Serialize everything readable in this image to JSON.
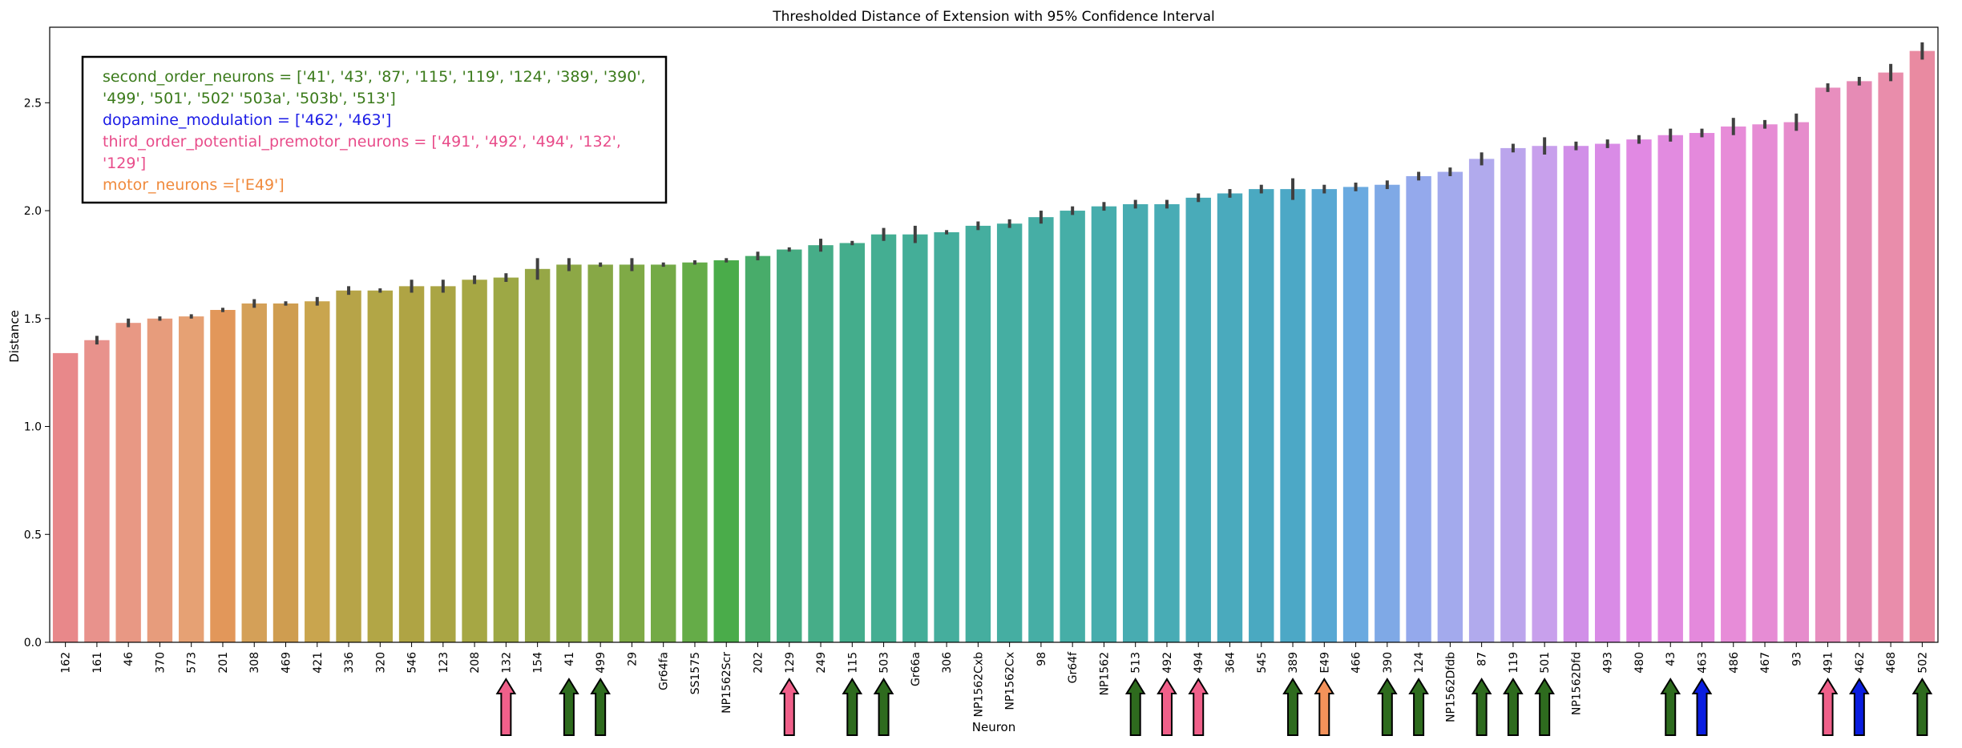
{
  "chart_data": {
    "type": "bar",
    "title": "Thresholded Distance of Extension with 95% Confidence Interval",
    "xlabel": "Neuron",
    "ylabel": "Distance",
    "ylim": [
      0,
      2.85
    ],
    "yticks": [
      "0.0",
      "0.5",
      "1.0",
      "1.5",
      "2.0",
      "2.5"
    ],
    "grid": false,
    "categories": [
      "162",
      "161",
      "46",
      "370",
      "573",
      "201",
      "308",
      "469",
      "421",
      "336",
      "320",
      "546",
      "123",
      "208",
      "132",
      "154",
      "41",
      "499",
      "29",
      "Gr64fa",
      "SS1575",
      "NP1562Scr",
      "202",
      "129",
      "249",
      "115",
      "503",
      "Gr66a",
      "306",
      "NP1562Cxb",
      "NP1562Cx",
      "98",
      "Gr64f",
      "NP1562",
      "513",
      "492",
      "494",
      "364",
      "545",
      "389",
      "E49",
      "466",
      "390",
      "124",
      "NP1562Dfdb",
      "87",
      "119",
      "501",
      "NP1562Dfd",
      "493",
      "480",
      "43",
      "463",
      "486",
      "467",
      "93",
      "491",
      "462",
      "468",
      "502"
    ],
    "values": [
      1.34,
      1.4,
      1.48,
      1.5,
      1.51,
      1.54,
      1.57,
      1.57,
      1.58,
      1.63,
      1.63,
      1.65,
      1.65,
      1.68,
      1.69,
      1.73,
      1.75,
      1.75,
      1.75,
      1.75,
      1.76,
      1.77,
      1.79,
      1.82,
      1.84,
      1.85,
      1.89,
      1.89,
      1.9,
      1.93,
      1.94,
      1.97,
      2.0,
      2.02,
      2.03,
      2.03,
      2.06,
      2.08,
      2.1,
      2.1,
      2.1,
      2.11,
      2.12,
      2.16,
      2.18,
      2.24,
      2.29,
      2.3,
      2.3,
      2.31,
      2.33,
      2.35,
      2.36,
      2.39,
      2.4,
      2.41,
      2.57,
      2.6,
      2.64,
      2.74
    ],
    "errors": [
      0,
      0.02,
      0.02,
      0.01,
      0.01,
      0.01,
      0.02,
      0.01,
      0.02,
      0.02,
      0.01,
      0.03,
      0.03,
      0.02,
      0.02,
      0.05,
      0.03,
      0.01,
      0.03,
      0.01,
      0.01,
      0.01,
      0.02,
      0.01,
      0.03,
      0.01,
      0.03,
      0.04,
      0.01,
      0.02,
      0.02,
      0.03,
      0.02,
      0.02,
      0.02,
      0.02,
      0.02,
      0.02,
      0.02,
      0.05,
      0.02,
      0.02,
      0.02,
      0.02,
      0.02,
      0.03,
      0.02,
      0.04,
      0.02,
      0.02,
      0.02,
      0.03,
      0.02,
      0.04,
      0.02,
      0.04,
      0.02,
      0.02,
      0.04,
      0.04
    ],
    "colors": [
      "#e8888a",
      "#e8928c",
      "#e89884",
      "#e79c7c",
      "#e6a174",
      "#e2975a",
      "#d4a058",
      "#cf9d50",
      "#c9a54e",
      "#b7a448",
      "#b2a646",
      "#afa444",
      "#aaa544",
      "#a6a744",
      "#9da845",
      "#96a746",
      "#8da846",
      "#87a846",
      "#7faa46",
      "#74aa47",
      "#65ac48",
      "#4aac4a",
      "#48ac6a",
      "#46ac82",
      "#46ad88",
      "#44ad8c",
      "#44ae92",
      "#44ae98",
      "#45ae9d",
      "#45ae9f",
      "#45aea2",
      "#46aea5",
      "#46aea7",
      "#47adad",
      "#48acb1",
      "#48acb5",
      "#49abb9",
      "#4aaabd",
      "#4aa9c1",
      "#4ca8c6",
      "#58a8d3",
      "#6aaae0",
      "#7fa9e6",
      "#94a9ec",
      "#a3aaed",
      "#b1aaed",
      "#bba5ec",
      "#c8a0ec",
      "#d18fe8",
      "#d98be6",
      "#e189e3",
      "#e28be0",
      "#e489dc",
      "#e78cd8",
      "#e68cd4",
      "#e68ccc",
      "#e88ebe",
      "#e68bb5",
      "#e98dab",
      "#e98aa1"
    ],
    "legend": {
      "lines": [
        {
          "text": "second_order_neurons = ['41', '43', '87', '115', '119', '124', '389', '390',",
          "color": "#3a7a1a"
        },
        {
          "text": "'499', '501', '502' '503a', '503b', '513']",
          "color": "#3a7a1a"
        },
        {
          "text": "dopamine_modulation = ['462', '463']",
          "color": "#1a1ae6"
        },
        {
          "text": "third_order_potential_premotor_neurons = ['491', '492', '494', '132',",
          "color": "#e84c8a"
        },
        {
          "text": "'129']",
          "color": "#e84c8a"
        },
        {
          "text": "motor_neurons =['E49']",
          "color": "#f08a3c"
        }
      ],
      "placement": "upper-left"
    },
    "arrows": [
      {
        "category": "132",
        "group": "third_order"
      },
      {
        "category": "41",
        "group": "second_order"
      },
      {
        "category": "499",
        "group": "second_order"
      },
      {
        "category": "129",
        "group": "third_order"
      },
      {
        "category": "115",
        "group": "second_order"
      },
      {
        "category": "503",
        "group": "second_order"
      },
      {
        "category": "513",
        "group": "second_order"
      },
      {
        "category": "492",
        "group": "third_order"
      },
      {
        "category": "494",
        "group": "third_order"
      },
      {
        "category": "389",
        "group": "second_order"
      },
      {
        "category": "E49",
        "group": "motor"
      },
      {
        "category": "390",
        "group": "second_order"
      },
      {
        "category": "124",
        "group": "second_order"
      },
      {
        "category": "87",
        "group": "second_order"
      },
      {
        "category": "119",
        "group": "second_order"
      },
      {
        "category": "501",
        "group": "second_order"
      },
      {
        "category": "43",
        "group": "second_order"
      },
      {
        "category": "463",
        "group": "dopamine"
      },
      {
        "category": "491",
        "group": "third_order"
      },
      {
        "category": "462",
        "group": "dopamine"
      },
      {
        "category": "502",
        "group": "second_order"
      }
    ],
    "arrow_colors": {
      "second_order": "#2e6b1e",
      "third_order": "#f0608a",
      "dopamine": "#0a1ee0",
      "motor": "#f4925a"
    }
  }
}
